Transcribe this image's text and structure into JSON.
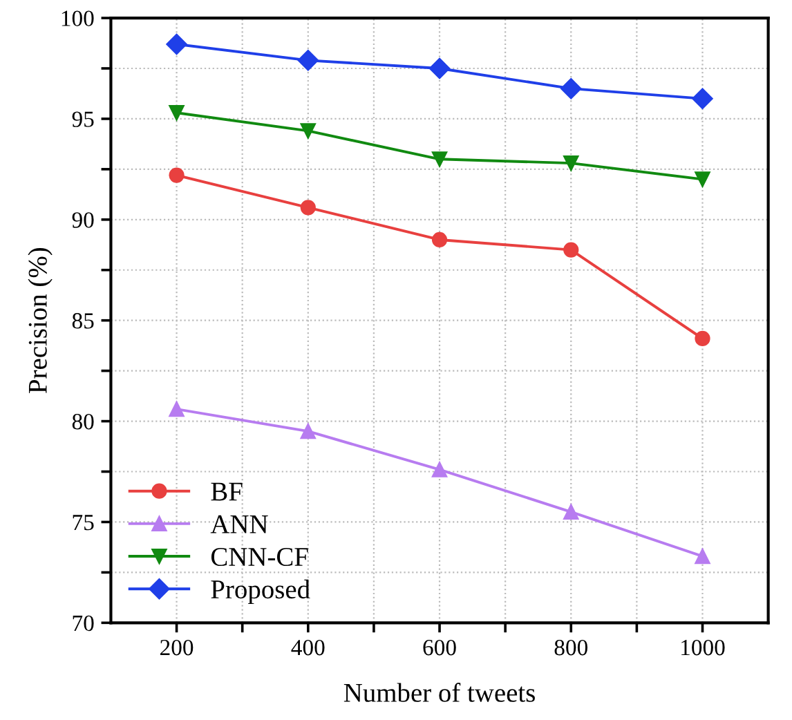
{
  "chart_data": {
    "type": "line",
    "xlabel": "Number of tweets",
    "ylabel": "Precision (%)",
    "x": [
      200,
      400,
      600,
      800,
      1000
    ],
    "series": [
      {
        "name": "BF",
        "color": "#e8403f",
        "marker": "circle",
        "values": [
          92.2,
          90.6,
          89.0,
          88.5,
          84.1
        ]
      },
      {
        "name": "ANN",
        "color": "#b77cf0",
        "marker": "triangle",
        "values": [
          80.6,
          79.5,
          77.6,
          75.5,
          73.3
        ]
      },
      {
        "name": "CNN-CF",
        "color": "#118a11",
        "marker": "triangle_down",
        "values": [
          95.3,
          94.4,
          93.0,
          92.8,
          92.0
        ]
      },
      {
        "name": "Proposed",
        "color": "#1f3fe8",
        "marker": "diamond",
        "values": [
          98.7,
          97.9,
          97.5,
          96.5,
          96.0
        ]
      }
    ],
    "xlim": [
      100,
      1100
    ],
    "ylim": [
      70,
      100
    ],
    "xticks": [
      200,
      {
        "value": 300,
        "label": null
      },
      400,
      {
        "value": 500,
        "label": null
      },
      600,
      {
        "value": 700,
        "label": null
      },
      800,
      {
        "value": 900,
        "label": null
      },
      1000
    ],
    "yticks": [
      70,
      {
        "value": 72.5,
        "label": null
      },
      75,
      {
        "value": 77.5,
        "label": null
      },
      80,
      {
        "value": 82.5,
        "label": null
      },
      85,
      {
        "value": 87.5,
        "label": null
      },
      90,
      {
        "value": 92.5,
        "label": null
      },
      95,
      {
        "value": 97.5,
        "label": null
      },
      100
    ],
    "grid": true,
    "legend": "bottom left",
    "line_style": "solid"
  }
}
